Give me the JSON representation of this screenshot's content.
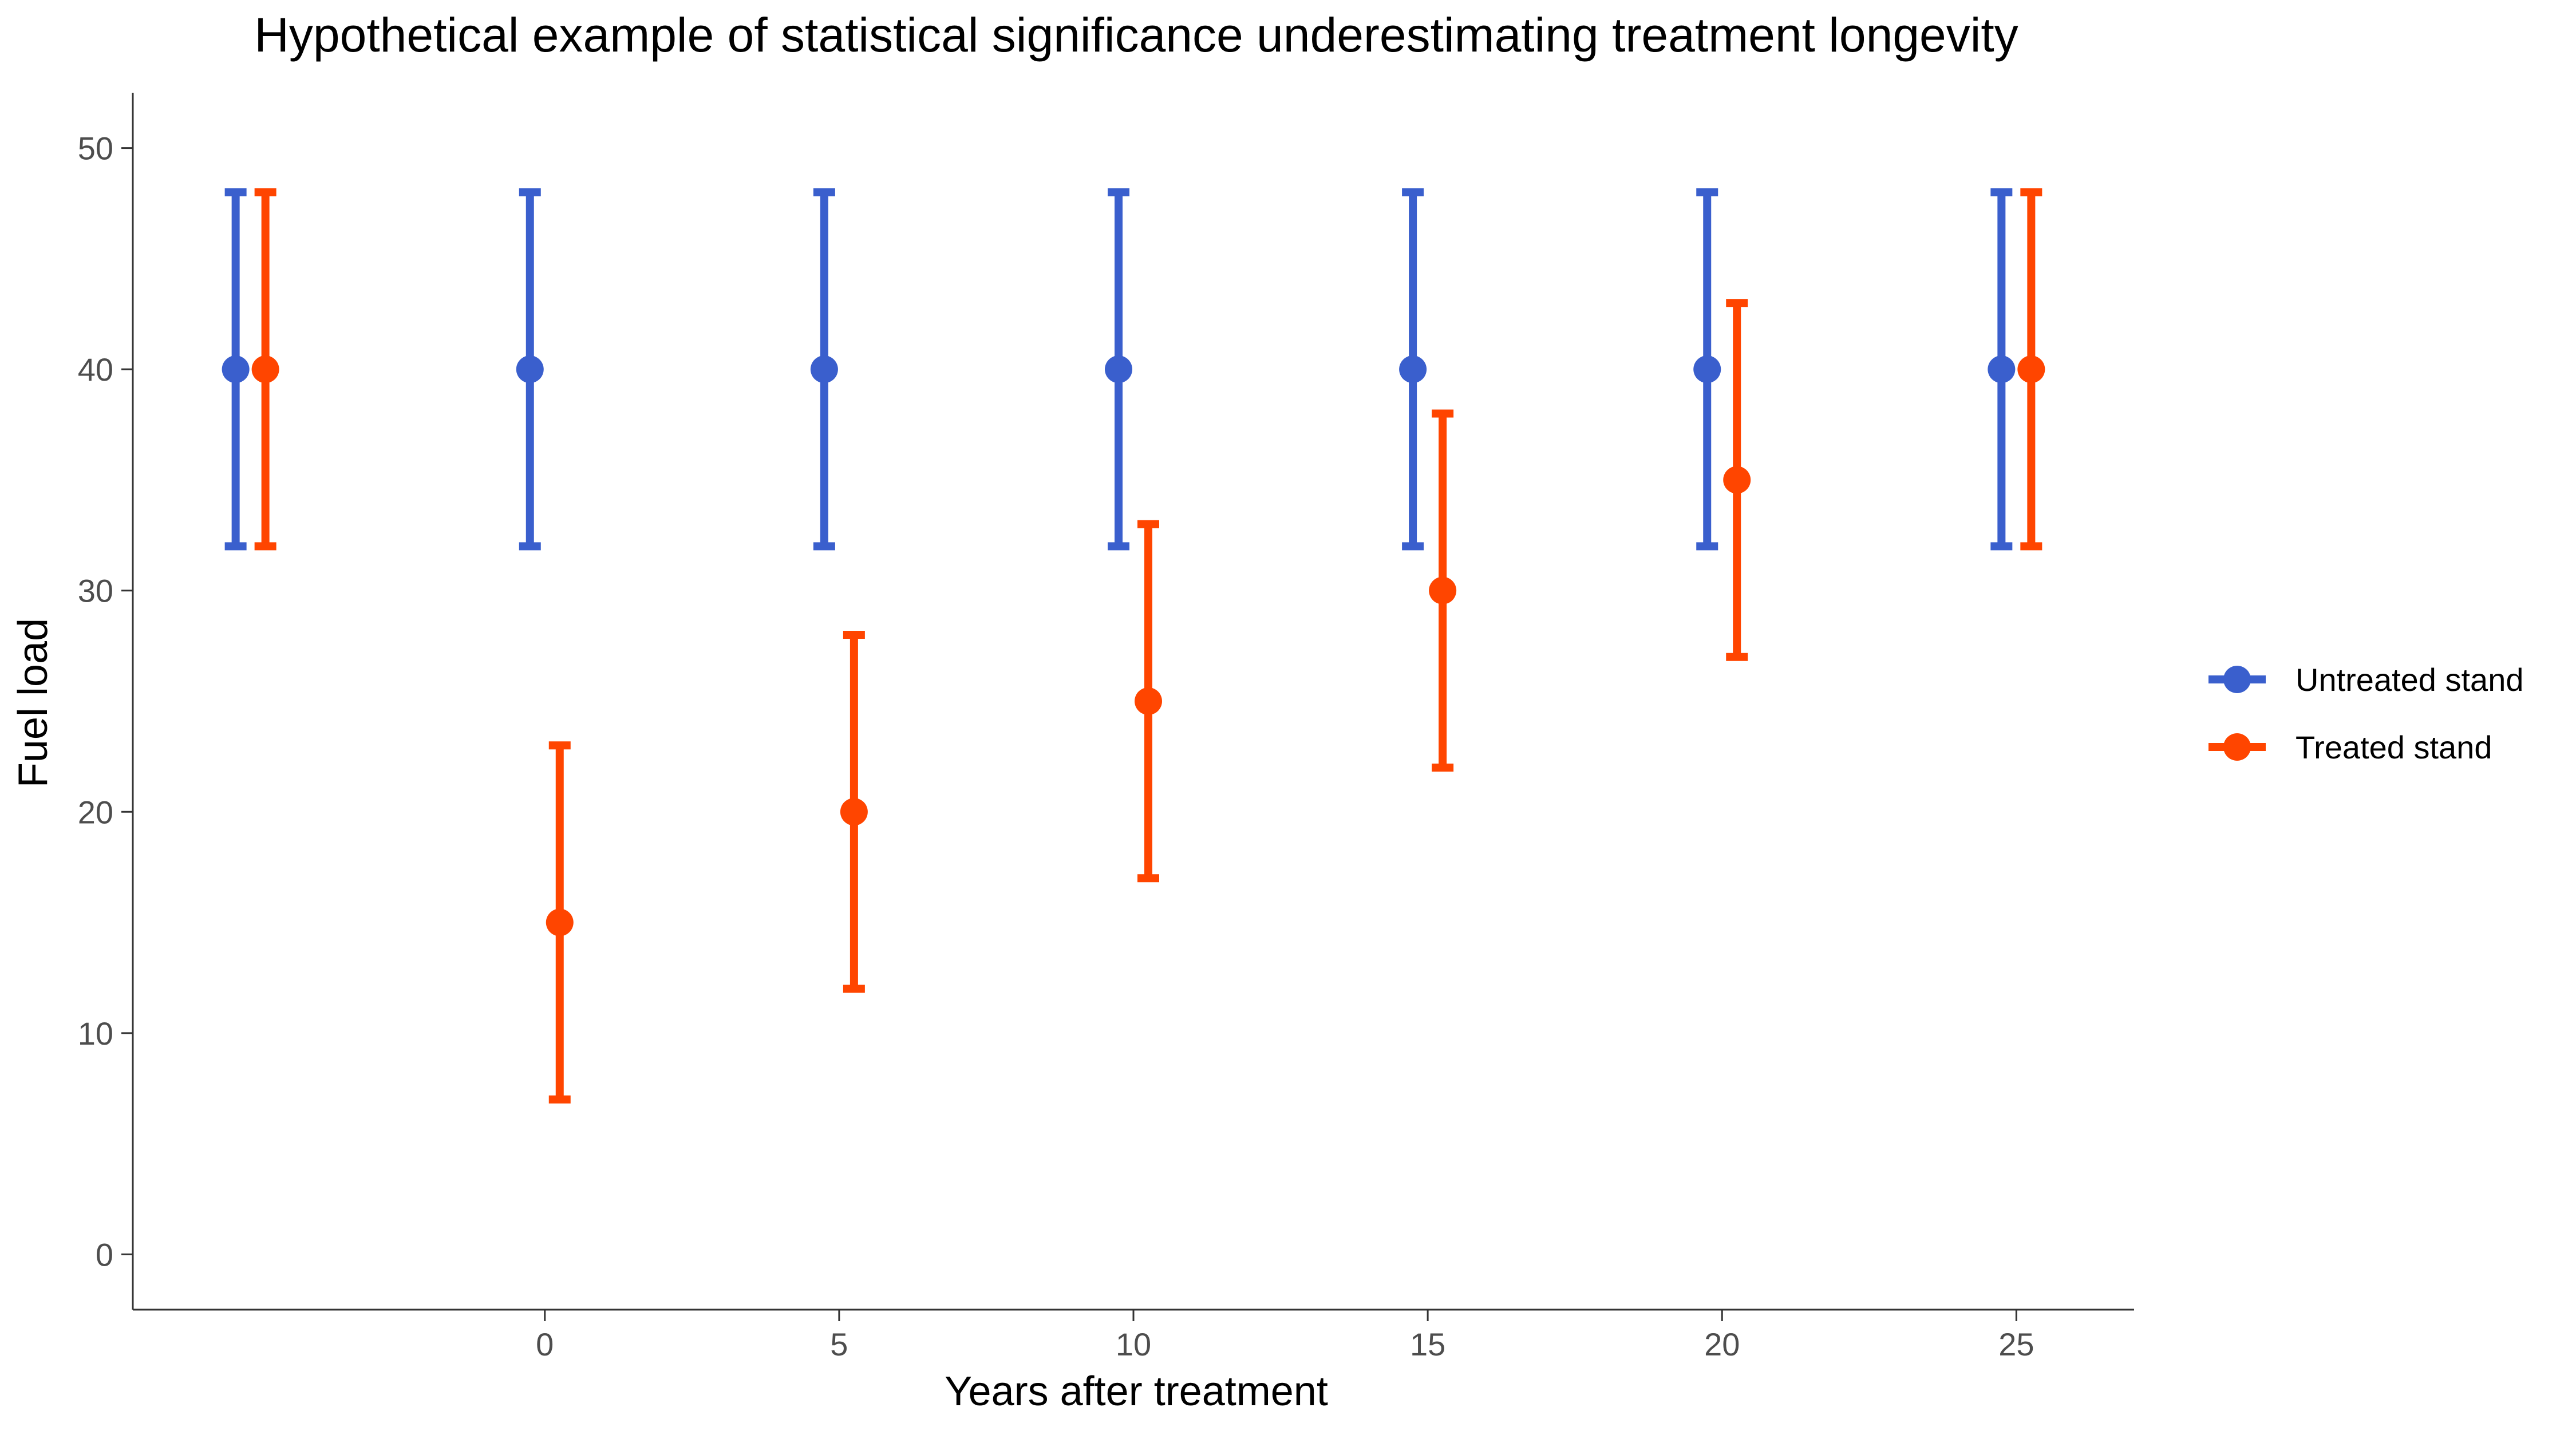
{
  "chart_data": {
    "type": "scatter",
    "title": "Hypothetical example of statistical significance underestimating treatment longevity",
    "xlabel": "Years after treatment",
    "ylabel": "Fuel load",
    "x_tick_labels": [
      "0",
      "5",
      "10",
      "15",
      "20",
      "25"
    ],
    "y_tick_labels": [
      "0",
      "10",
      "20",
      "30",
      "40",
      "50"
    ],
    "xlim": [
      -7,
      27
    ],
    "ylim": [
      -2.5,
      52.5
    ],
    "grid": false,
    "legend_position": "right",
    "error_bars": true,
    "series": [
      {
        "name": "Untreated stand",
        "color": "#3A5FCD",
        "points": [
          {
            "x": -5,
            "y": 40,
            "low": 32,
            "high": 48
          },
          {
            "x": 0,
            "y": 40,
            "low": 32,
            "high": 48
          },
          {
            "x": 5,
            "y": 40,
            "low": 32,
            "high": 48
          },
          {
            "x": 10,
            "y": 40,
            "low": 32,
            "high": 48
          },
          {
            "x": 15,
            "y": 40,
            "low": 32,
            "high": 48
          },
          {
            "x": 20,
            "y": 40,
            "low": 32,
            "high": 48
          },
          {
            "x": 25,
            "y": 40,
            "low": 32,
            "high": 48
          }
        ]
      },
      {
        "name": "Treated stand",
        "color": "#FF4500",
        "points": [
          {
            "x": -5,
            "y": 40,
            "low": 32,
            "high": 48
          },
          {
            "x": 0,
            "y": 15,
            "low": 7,
            "high": 23
          },
          {
            "x": 5,
            "y": 20,
            "low": 12,
            "high": 28
          },
          {
            "x": 10,
            "y": 25,
            "low": 17,
            "high": 33
          },
          {
            "x": 15,
            "y": 30,
            "low": 22,
            "high": 38
          },
          {
            "x": 20,
            "y": 35,
            "low": 27,
            "high": 43
          },
          {
            "x": 25,
            "y": 40,
            "low": 32,
            "high": 48
          }
        ]
      }
    ]
  }
}
